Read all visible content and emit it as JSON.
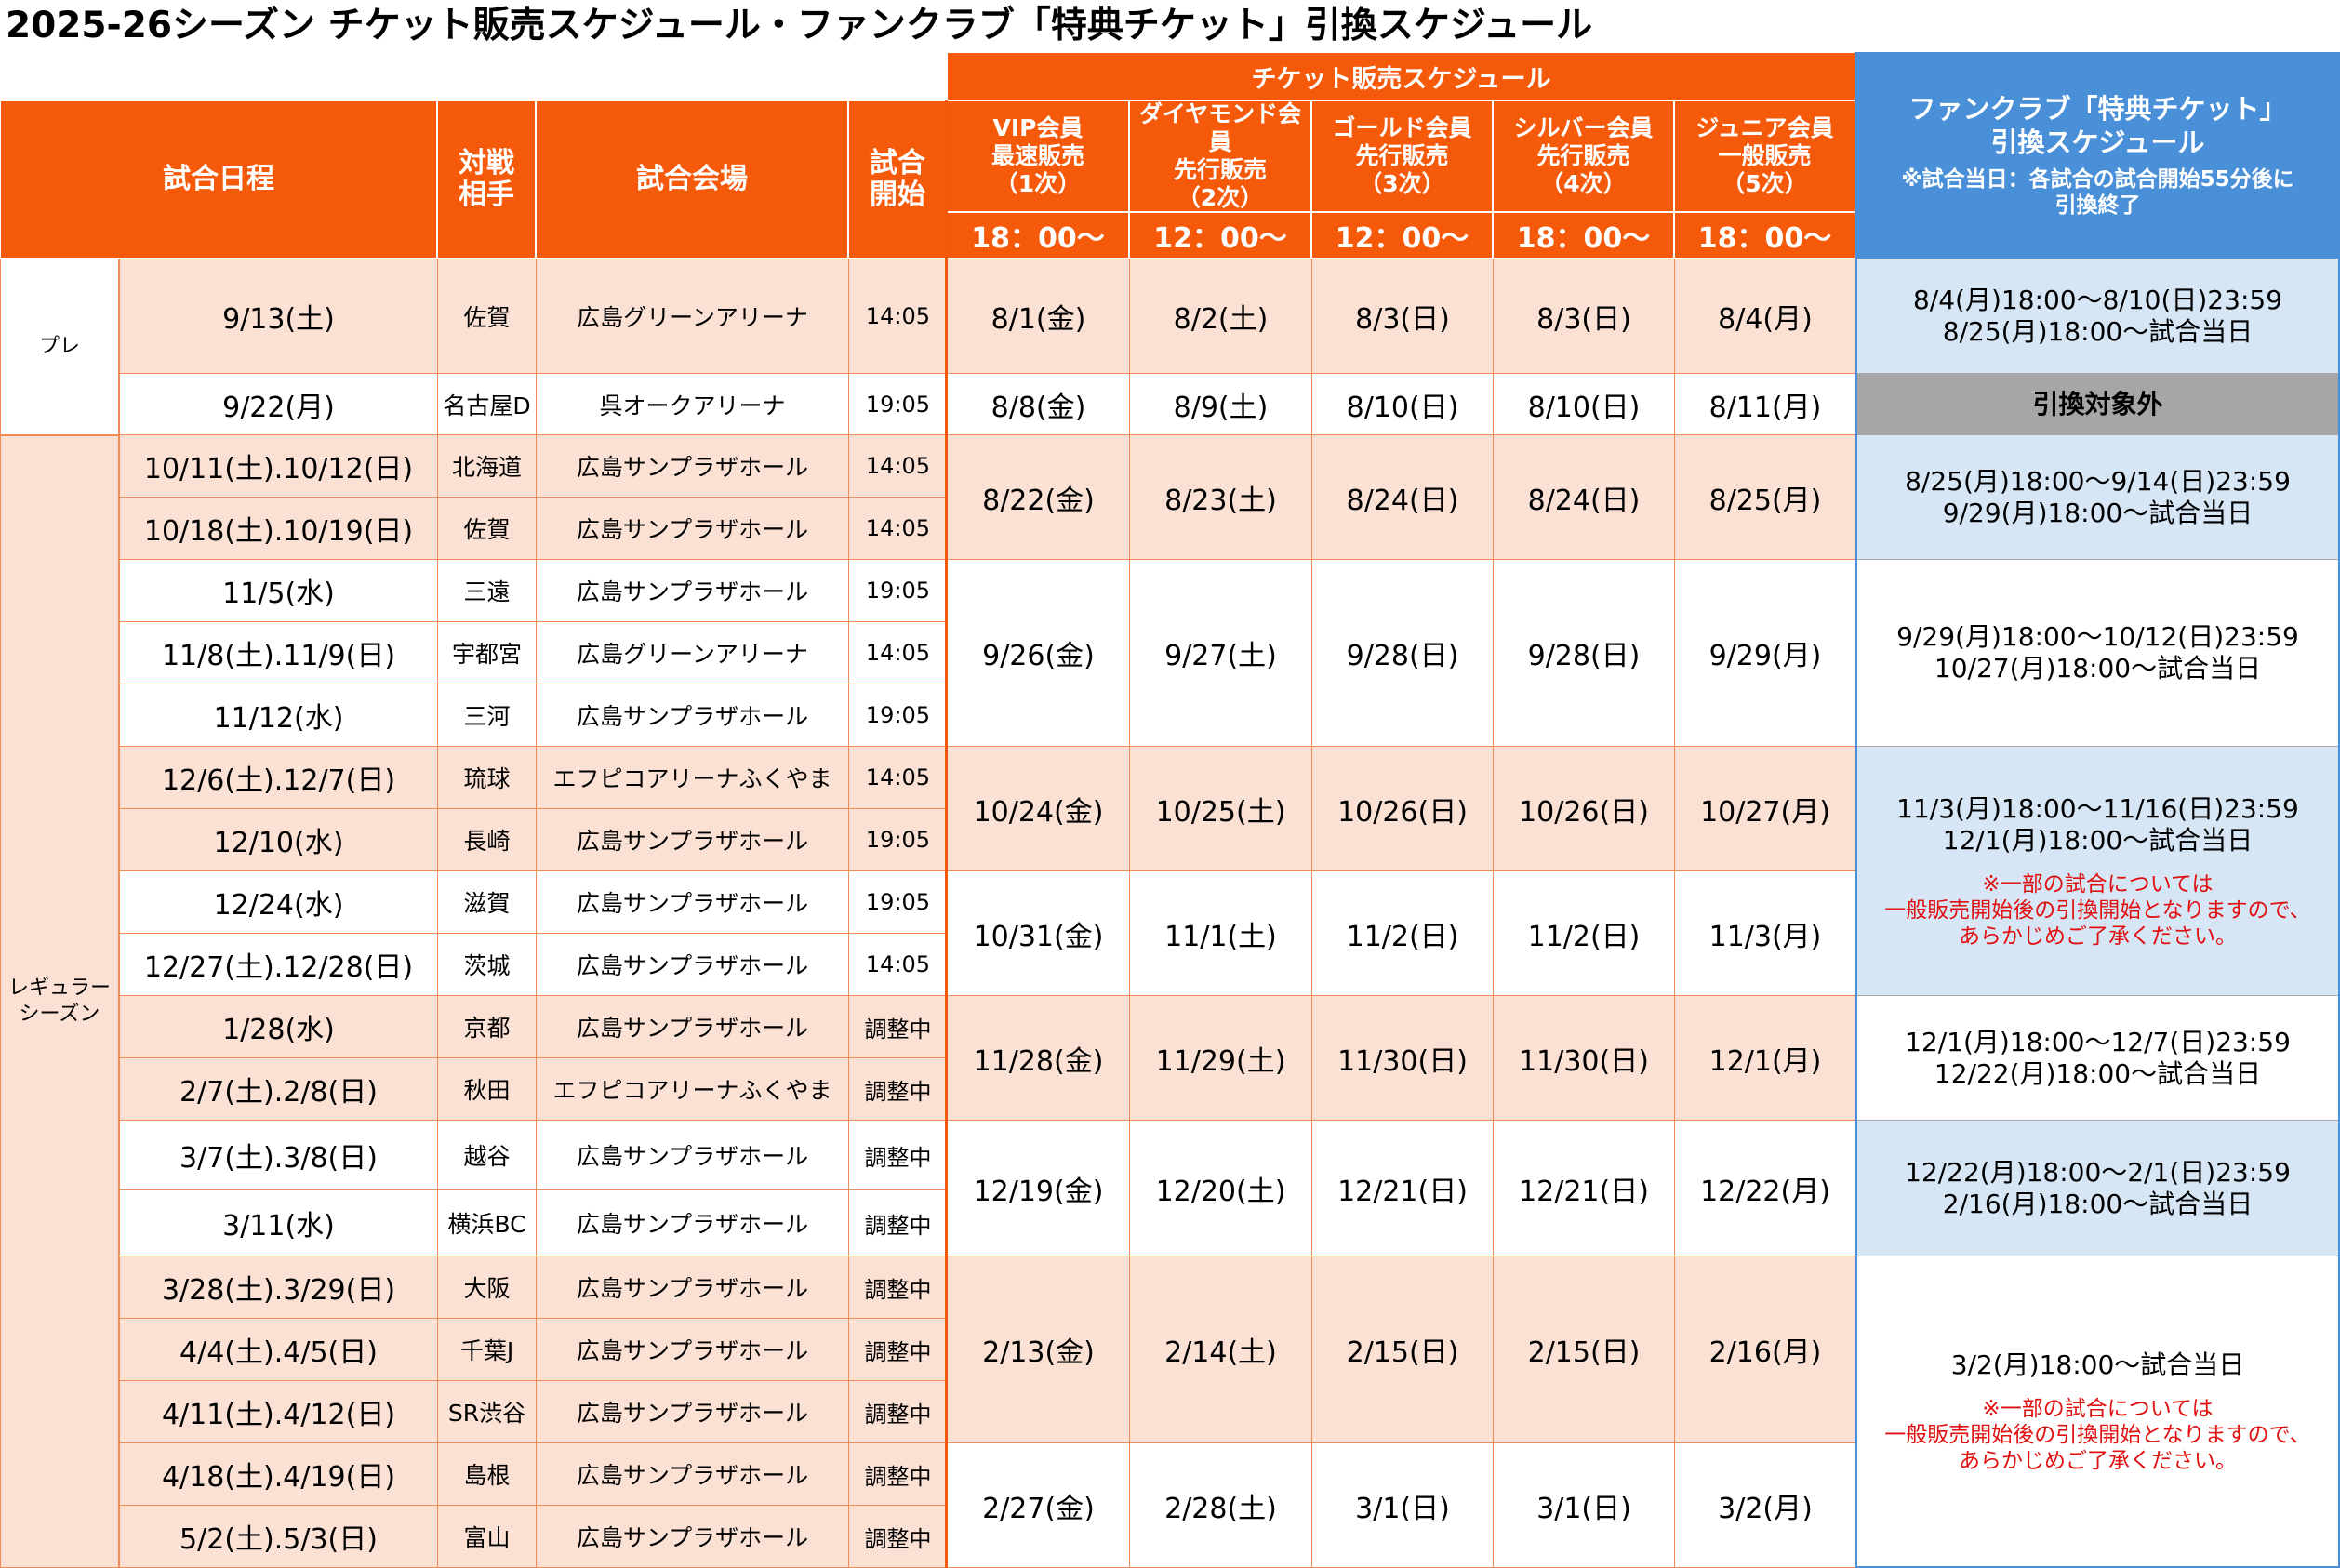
{
  "title": "2025-26シーズン チケット販売スケジュール・ファンクラブ「特典チケット」引換スケジュール",
  "header": {
    "sale_schedule": "チケット販売スケジュール",
    "game_date": "試合日程",
    "opponent": "対戦\n相手",
    "venue": "試合会場",
    "start": "試合\n開始",
    "tiers": [
      {
        "name": "VIP会員\n最速販売\n（1次）",
        "time": "18：00～"
      },
      {
        "name": "ダイヤモンド会員\n先行販売\n（2次）",
        "time": "12：00～"
      },
      {
        "name": "ゴールド会員\n先行販売\n（3次）",
        "time": "12：00～"
      },
      {
        "name": "シルバー会員\n先行販売\n（4次）",
        "time": "18：00～"
      },
      {
        "name": "ジュニア会員\n一般販売\n（5次）",
        "time": "18：00～"
      }
    ],
    "fc_title": "ファンクラブ「特典チケット」\n引換スケジュール",
    "fc_note": "※試合当日：各試合の試合開始55分後に\n引換終了"
  },
  "categories": {
    "pre": "プレ",
    "regular": "レギュラー\nシーズン"
  },
  "games": [
    {
      "date": "9/13(土)",
      "opp": "佐賀",
      "venue": "広島グリーンアリーナ",
      "time": "14:05"
    },
    {
      "date": "9/22(月)",
      "opp": "名古屋D",
      "venue": "呉オークアリーナ",
      "time": "19:05"
    },
    {
      "date": "10/11(土).10/12(日)",
      "opp": "北海道",
      "venue": "広島サンプラザホール",
      "time": "14:05"
    },
    {
      "date": "10/18(土).10/19(日)",
      "opp": "佐賀",
      "venue": "広島サンプラザホール",
      "time": "14:05"
    },
    {
      "date": "11/5(水)",
      "opp": "三遠",
      "venue": "広島サンプラザホール",
      "time": "19:05"
    },
    {
      "date": "11/8(土).11/9(日)",
      "opp": "宇都宮",
      "venue": "広島グリーンアリーナ",
      "time": "14:05"
    },
    {
      "date": "11/12(水)",
      "opp": "三河",
      "venue": "広島サンプラザホール",
      "time": "19:05"
    },
    {
      "date": "12/6(土).12/7(日)",
      "opp": "琉球",
      "venue": "エフピコアリーナふくやま",
      "time": "14:05"
    },
    {
      "date": "12/10(水)",
      "opp": "長崎",
      "venue": "広島サンプラザホール",
      "time": "19:05"
    },
    {
      "date": "12/24(水)",
      "opp": "滋賀",
      "venue": "広島サンプラザホール",
      "time": "19:05"
    },
    {
      "date": "12/27(土).12/28(日)",
      "opp": "茨城",
      "venue": "広島サンプラザホール",
      "time": "14:05"
    },
    {
      "date": "1/28(水)",
      "opp": "京都",
      "venue": "広島サンプラザホール",
      "time": "調整中"
    },
    {
      "date": "2/7(土).2/8(日)",
      "opp": "秋田",
      "venue": "エフピコアリーナふくやま",
      "time": "調整中"
    },
    {
      "date": "3/7(土).3/8(日)",
      "opp": "越谷",
      "venue": "広島サンプラザホール",
      "time": "調整中"
    },
    {
      "date": "3/11(水)",
      "opp": "横浜BC",
      "venue": "広島サンプラザホール",
      "time": "調整中"
    },
    {
      "date": "3/28(土).3/29(日)",
      "opp": "大阪",
      "venue": "広島サンプラザホール",
      "time": "調整中"
    },
    {
      "date": "4/4(土).4/5(日)",
      "opp": "千葉J",
      "venue": "広島サンプラザホール",
      "time": "調整中"
    },
    {
      "date": "4/11(土).4/12(日)",
      "opp": "SR渋谷",
      "venue": "広島サンプラザホール",
      "time": "調整中"
    },
    {
      "date": "4/18(土).4/19(日)",
      "opp": "島根",
      "venue": "広島サンプラザホール",
      "time": "調整中"
    },
    {
      "date": "5/2(土).5/3(日)",
      "opp": "富山",
      "venue": "広島サンプラザホール",
      "time": "調整中"
    }
  ],
  "sales": [
    {
      "dates": [
        "8/1(金)",
        "8/2(土)",
        "8/3(日)",
        "8/3(日)",
        "8/4(月)"
      ]
    },
    {
      "dates": [
        "8/8(金)",
        "8/9(土)",
        "8/10(日)",
        "8/10(日)",
        "8/11(月)"
      ]
    },
    {
      "dates": [
        "8/22(金)",
        "8/23(土)",
        "8/24(日)",
        "8/24(日)",
        "8/25(月)"
      ]
    },
    {
      "dates": [
        "9/26(金)",
        "9/27(土)",
        "9/28(日)",
        "9/28(日)",
        "9/29(月)"
      ]
    },
    {
      "dates": [
        "10/24(金)",
        "10/25(土)",
        "10/26(日)",
        "10/26(日)",
        "10/27(月)"
      ]
    },
    {
      "dates": [
        "10/31(金)",
        "11/1(土)",
        "11/2(日)",
        "11/2(日)",
        "11/3(月)"
      ]
    },
    {
      "dates": [
        "11/28(金)",
        "11/29(土)",
        "11/30(日)",
        "11/30(日)",
        "12/1(月)"
      ]
    },
    {
      "dates": [
        "12/19(金)",
        "12/20(土)",
        "12/21(日)",
        "12/21(日)",
        "12/22(月)"
      ]
    },
    {
      "dates": [
        "2/13(金)",
        "2/14(土)",
        "2/15(日)",
        "2/15(日)",
        "2/16(月)"
      ]
    },
    {
      "dates": [
        "2/27(金)",
        "2/28(土)",
        "3/1(日)",
        "3/1(日)",
        "3/2(月)"
      ]
    }
  ],
  "exchange": [
    {
      "text": "8/4(月)18:00～8/10(日)23:59\n8/25(月)18:00～試合当日",
      "note": ""
    },
    {
      "text": "引換対象外",
      "note": ""
    },
    {
      "text": "8/25(月)18:00～9/14(日)23:59\n9/29(月)18:00～試合当日",
      "note": ""
    },
    {
      "text": "9/29(月)18:00～10/12(日)23:59\n10/27(月)18:00～試合当日",
      "note": ""
    },
    {
      "text": "11/3(月)18:00～11/16(日)23:59\n12/1(月)18:00～試合当日",
      "note": "※一部の試合については\n一般販売開始後の引換開始となりますので、\nあらかじめご了承ください。"
    },
    {
      "text": "12/1(月)18:00～12/7(日)23:59\n12/22(月)18:00～試合当日",
      "note": ""
    },
    {
      "text": "12/22(月)18:00～2/1(日)23:59\n2/16(月)18:00～試合当日",
      "note": ""
    },
    {
      "text": "3/2(月)18:00～試合当日",
      "note": "※一部の試合については\n一般販売開始後の引換開始となりますので、\nあらかじめご了承ください。"
    }
  ]
}
